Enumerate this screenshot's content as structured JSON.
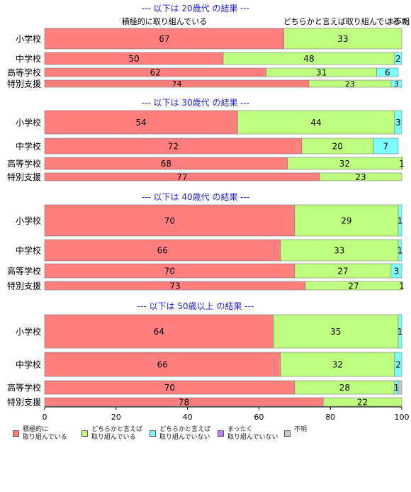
{
  "chart_data": {
    "type": "bar",
    "orientation": "horizontal",
    "stacked": true,
    "xlim": [
      0,
      100
    ],
    "xticks": [
      0,
      20,
      40,
      60,
      80,
      100
    ],
    "grid": false,
    "legend_position": "bottom",
    "top_labels": {
      "series0": "積極的に取り組んでいる",
      "series1": "どちらかと言えば取り組んでいる",
      "series2": "まったく",
      "series4": "不明"
    },
    "series": [
      {
        "name": "積極的に\n取り組んでいる",
        "color": "#ff7f7f"
      },
      {
        "name": "どちらかと言えば\n取り組んでいる",
        "color": "#bfff7f"
      },
      {
        "name": "どちらかと言えば\n取り組んでいない",
        "color": "#7fffff"
      },
      {
        "name": "まったく\n取り組んでいない",
        "color": "#bf7fff"
      },
      {
        "name": "不明",
        "color": "#cccccc"
      }
    ],
    "panels": [
      {
        "title": "--- 以下は 20歳代 の結果 ---",
        "categories": [
          "小学校",
          "中学校",
          "高等学校",
          "特別支援"
        ],
        "values": [
          [
            67,
            33,
            0,
            0,
            0
          ],
          [
            50,
            48,
            2,
            0,
            0
          ],
          [
            62,
            31,
            6,
            0,
            0
          ],
          [
            74,
            23,
            3,
            0,
            0
          ]
        ],
        "labels": [
          [
            "67",
            "33",
            "",
            "",
            ""
          ],
          [
            "50",
            "48",
            "2",
            "",
            ""
          ],
          [
            "62",
            "31",
            "6",
            "",
            ""
          ],
          [
            "74",
            "23",
            "3",
            "",
            ""
          ]
        ]
      },
      {
        "title": "--- 以下は 30歳代 の結果 ---",
        "categories": [
          "小学校",
          "中学校",
          "高等学校",
          "特別支援"
        ],
        "values": [
          [
            54,
            44,
            3,
            0,
            0
          ],
          [
            72,
            20,
            7,
            0,
            0
          ],
          [
            68,
            32,
            1,
            0,
            0
          ],
          [
            77,
            23,
            0,
            0,
            0
          ]
        ],
        "labels": [
          [
            "54",
            "44",
            "3",
            "",
            ""
          ],
          [
            "72",
            "20",
            "7",
            "",
            ""
          ],
          [
            "68",
            "32",
            "1",
            "",
            ""
          ],
          [
            "77",
            "23",
            "",
            "",
            ""
          ]
        ]
      },
      {
        "title": "--- 以下は 40歳代 の結果 ---",
        "categories": [
          "小学校",
          "中学校",
          "高等学校",
          "特別支援"
        ],
        "values": [
          [
            70,
            29,
            1,
            0,
            0
          ],
          [
            66,
            33,
            1,
            0,
            0
          ],
          [
            70,
            27,
            3,
            0,
            0
          ],
          [
            73,
            27,
            1,
            0,
            0
          ]
        ],
        "labels": [
          [
            "70",
            "29",
            "1",
            "",
            ""
          ],
          [
            "66",
            "33",
            "1",
            "",
            ""
          ],
          [
            "70",
            "27",
            "3",
            "",
            ""
          ],
          [
            "73",
            "27",
            "1",
            "",
            ""
          ]
        ]
      },
      {
        "title": "--- 以下は 50歳以上 の結果 ---",
        "categories": [
          "小学校",
          "中学校",
          "高等学校",
          "特別支援"
        ],
        "values": [
          [
            64,
            35,
            1,
            0,
            0
          ],
          [
            66,
            32,
            2,
            0,
            0
          ],
          [
            70,
            28,
            1,
            0,
            1
          ],
          [
            78,
            22,
            0,
            0,
            0
          ]
        ],
        "labels": [
          [
            "64",
            "35",
            "1",
            "",
            ""
          ],
          [
            "66",
            "32",
            "2",
            "",
            ""
          ],
          [
            "70",
            "28",
            "1",
            "",
            ""
          ],
          [
            "78",
            "22",
            "",
            "",
            ""
          ]
        ]
      }
    ]
  }
}
